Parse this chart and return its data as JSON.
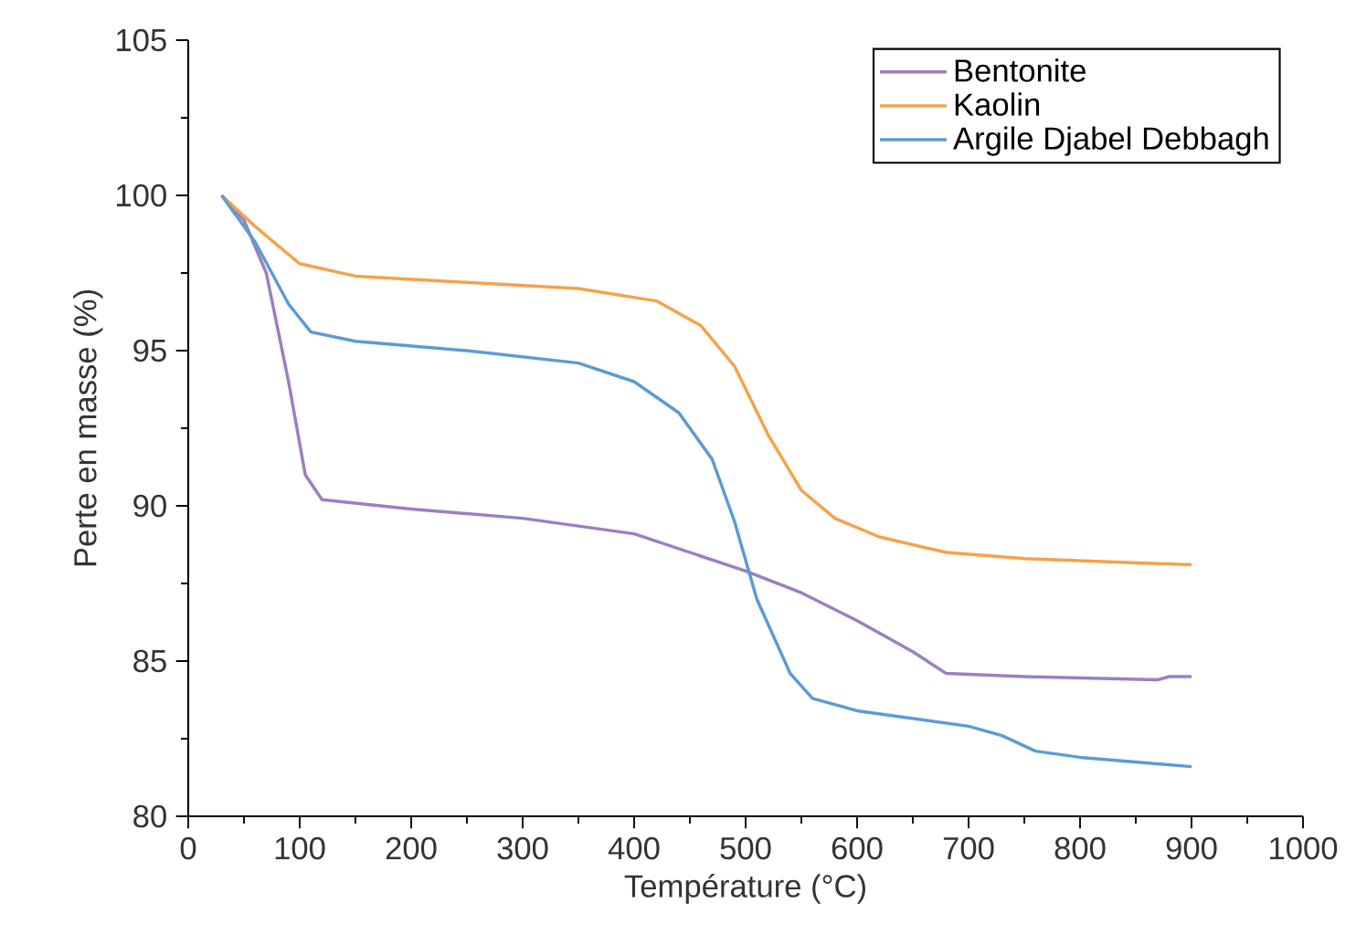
{
  "chart_data": {
    "type": "line",
    "xlabel": "Température (°C)",
    "ylabel": "Perte en masse (%)",
    "xlim": [
      0,
      1000
    ],
    "xticks": [
      0,
      100,
      200,
      300,
      400,
      500,
      600,
      700,
      800,
      900,
      1000
    ],
    "ylim": [
      80,
      105
    ],
    "yticks": [
      80,
      85,
      90,
      95,
      100,
      105
    ],
    "legend": "top right",
    "grid": false,
    "marker": "none",
    "line_style": "solid",
    "series": [
      {
        "name": "Bentonite",
        "color": "#9b7fc0",
        "x": [
          30,
          50,
          70,
          90,
          105,
          120,
          200,
          300,
          400,
          450,
          500,
          550,
          600,
          650,
          680,
          750,
          870,
          880,
          900
        ],
        "values": [
          100,
          99.2,
          97.5,
          94,
          91,
          90.2,
          89.9,
          89.6,
          89.1,
          88.5,
          87.9,
          87.2,
          86.3,
          85.3,
          84.6,
          84.5,
          84.4,
          84.5,
          84.5
        ]
      },
      {
        "name": "Kaolin",
        "color": "#f5a24a",
        "x": [
          30,
          60,
          100,
          150,
          250,
          350,
          420,
          460,
          490,
          520,
          550,
          580,
          620,
          680,
          750,
          900
        ],
        "values": [
          100,
          99,
          97.8,
          97.4,
          97.2,
          97.0,
          96.6,
          95.8,
          94.5,
          92.3,
          90.5,
          89.6,
          89.0,
          88.5,
          88.3,
          88.1
        ]
      },
      {
        "name": "Argile Djabel Debbagh",
        "color": "#5b9bd5",
        "x": [
          30,
          60,
          90,
          110,
          150,
          250,
          350,
          400,
          440,
          470,
          490,
          510,
          540,
          560,
          600,
          700,
          730,
          760,
          800,
          900
        ],
        "values": [
          100,
          98.5,
          96.5,
          95.6,
          95.3,
          95.0,
          94.6,
          94.0,
          93.0,
          91.5,
          89.5,
          87,
          84.6,
          83.8,
          83.4,
          82.9,
          82.6,
          82.1,
          81.9,
          81.6
        ]
      }
    ]
  }
}
